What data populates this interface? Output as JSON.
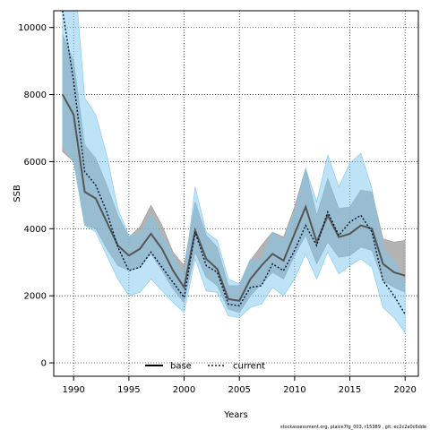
{
  "chart_data": {
    "type": "line",
    "xlabel": "Years",
    "ylabel": "SSB",
    "xlim": [
      1988.2,
      2021.2
    ],
    "ylim": [
      -400,
      10500
    ],
    "xticks": [
      1990,
      1995,
      2000,
      2005,
      2010,
      2015,
      2020
    ],
    "yticks": [
      0,
      2000,
      4000,
      6000,
      8000,
      10000
    ],
    "grid": true,
    "legend_position": "bottom-center",
    "footnote": "stockassessment.org, plaice7fg_003, r15389 , git: ec2c2a0c6dde",
    "series": [
      {
        "name": "base",
        "style": "solid",
        "color": "#555555",
        "band_color": "#9a9a9a",
        "x": [
          1989,
          1990,
          1991,
          1992,
          1993,
          1994,
          1995,
          1996,
          1997,
          1998,
          1999,
          2000,
          2001,
          2002,
          2003,
          2004,
          2005,
          2006,
          2007,
          2008,
          2009,
          2010,
          2011,
          2012,
          2013,
          2014,
          2015,
          2016,
          2017,
          2018,
          2019,
          2020
        ],
        "values": [
          8000,
          7400,
          5100,
          4900,
          4200,
          3500,
          3200,
          3400,
          3850,
          3400,
          2750,
          2250,
          3950,
          3100,
          2800,
          1900,
          1850,
          2500,
          2900,
          3250,
          3050,
          3850,
          4650,
          3600,
          4400,
          3750,
          3850,
          4100,
          4000,
          2950,
          2700,
          2600
        ],
        "lower": [
          6300,
          6000,
          4100,
          4000,
          3400,
          2900,
          2750,
          2850,
          3250,
          2750,
          2200,
          1800,
          3300,
          2550,
          2300,
          1600,
          1500,
          2000,
          2350,
          2700,
          2500,
          3200,
          3800,
          2950,
          3600,
          3150,
          3200,
          3450,
          3350,
          2450,
          2250,
          2100
        ],
        "upper": [
          9800,
          9000,
          6500,
          6100,
          5300,
          4400,
          3750,
          4050,
          4700,
          4100,
          3300,
          2900,
          4800,
          3800,
          3450,
          2300,
          2300,
          3050,
          3500,
          3900,
          3750,
          4650,
          5800,
          4400,
          5500,
          4600,
          4650,
          5150,
          5100,
          3700,
          3600,
          3650
        ]
      },
      {
        "name": "current",
        "style": "dotted",
        "color": "#0b1f40",
        "band_color": "#7ec8ef",
        "x": [
          1989,
          1990,
          1991,
          1992,
          1993,
          1994,
          1995,
          1996,
          1997,
          1998,
          1999,
          2000,
          2001,
          2002,
          2003,
          2004,
          2005,
          2006,
          2007,
          2008,
          2009,
          2010,
          2011,
          2012,
          2013,
          2014,
          2015,
          2016,
          2017,
          2018,
          2019,
          2020
        ],
        "values": [
          10500,
          8400,
          5700,
          5300,
          4500,
          3450,
          2750,
          2850,
          3300,
          2850,
          2400,
          1950,
          3900,
          2900,
          2700,
          1750,
          1700,
          2250,
          2300,
          2950,
          2750,
          3350,
          4100,
          3500,
          4500,
          3800,
          4200,
          4400,
          3900,
          2450,
          2000,
          1450
        ],
        "lower": [
          6500,
          6000,
          4100,
          3900,
          3200,
          2500,
          2000,
          2100,
          2500,
          2150,
          1800,
          1500,
          3100,
          2150,
          2100,
          1400,
          1350,
          1650,
          1750,
          2250,
          2000,
          2500,
          3250,
          2500,
          3300,
          2650,
          2900,
          3100,
          2850,
          1650,
          1350,
          900
        ],
        "upper": [
          13000,
          12000,
          7900,
          7400,
          6200,
          4600,
          3800,
          3850,
          4400,
          3800,
          3200,
          2550,
          5250,
          3900,
          3650,
          2500,
          2350,
          3100,
          3050,
          3900,
          3650,
          4500,
          5800,
          4800,
          6200,
          5250,
          5950,
          6250,
          5200,
          3400,
          3050,
          2350
        ]
      }
    ]
  }
}
